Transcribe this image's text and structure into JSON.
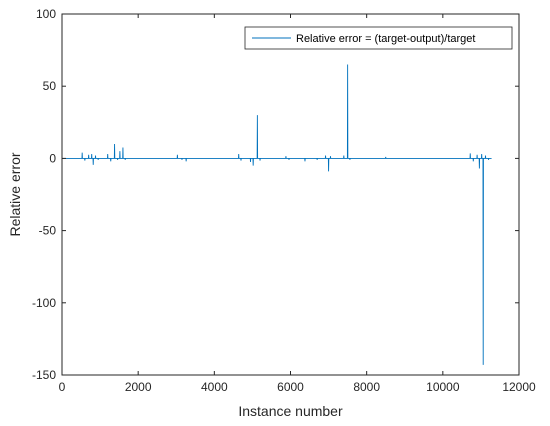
{
  "chart_data": {
    "type": "line",
    "title": "",
    "xlabel": "Instance number",
    "ylabel": "Relative error",
    "xlim": [
      0,
      12000
    ],
    "ylim": [
      -150,
      100
    ],
    "xticks": [
      "0",
      "2000",
      "4000",
      "6000",
      "8000",
      "10000",
      "12000"
    ],
    "yticks": [
      "100",
      "50",
      "0",
      "-50",
      "-100",
      "-150"
    ],
    "grid": false,
    "legend_position": "top-right",
    "colors": {
      "series": "#0072bd",
      "axes": "#262626"
    },
    "series": [
      {
        "name": "Relative error = (target-output)/target",
        "x_range": [
          1,
          11280
        ],
        "baseline": 0,
        "spikes": [
          {
            "x": 530,
            "y": 4
          },
          {
            "x": 600,
            "y": -1.5
          },
          {
            "x": 700,
            "y": 2.5
          },
          {
            "x": 780,
            "y": 3
          },
          {
            "x": 820,
            "y": -4.5
          },
          {
            "x": 880,
            "y": 2
          },
          {
            "x": 950,
            "y": -1
          },
          {
            "x": 1200,
            "y": 3
          },
          {
            "x": 1280,
            "y": -2
          },
          {
            "x": 1380,
            "y": 10
          },
          {
            "x": 1460,
            "y": -1
          },
          {
            "x": 1520,
            "y": 5
          },
          {
            "x": 1600,
            "y": 7.5
          },
          {
            "x": 1660,
            "y": -1
          },
          {
            "x": 3030,
            "y": 2.5
          },
          {
            "x": 3150,
            "y": -1
          },
          {
            "x": 3260,
            "y": -2
          },
          {
            "x": 4640,
            "y": 3
          },
          {
            "x": 4700,
            "y": -1.5
          },
          {
            "x": 4950,
            "y": -2.5
          },
          {
            "x": 5020,
            "y": -5
          },
          {
            "x": 5130,
            "y": 30
          },
          {
            "x": 5200,
            "y": -1.5
          },
          {
            "x": 5880,
            "y": 1.5
          },
          {
            "x": 5960,
            "y": -1
          },
          {
            "x": 6380,
            "y": -2
          },
          {
            "x": 6700,
            "y": -1
          },
          {
            "x": 6920,
            "y": 2
          },
          {
            "x": 7000,
            "y": -9
          },
          {
            "x": 7050,
            "y": 1.5
          },
          {
            "x": 7400,
            "y": 2
          },
          {
            "x": 7500,
            "y": 65
          },
          {
            "x": 7560,
            "y": -1
          },
          {
            "x": 8500,
            "y": 1
          },
          {
            "x": 10720,
            "y": 3.5
          },
          {
            "x": 10800,
            "y": -2
          },
          {
            "x": 10900,
            "y": 2.5
          },
          {
            "x": 10960,
            "y": -7
          },
          {
            "x": 11020,
            "y": 3
          },
          {
            "x": 11060,
            "y": -143
          },
          {
            "x": 11120,
            "y": 2
          },
          {
            "x": 11200,
            "y": -1
          }
        ]
      }
    ]
  }
}
